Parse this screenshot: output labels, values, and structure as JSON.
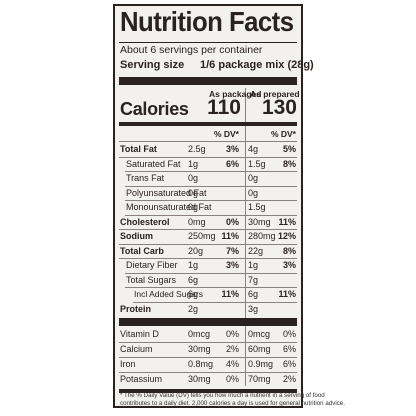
{
  "title": "Nutrition Facts",
  "servings_text": "About 6 servings per container",
  "serving_size_label": "Serving size",
  "serving_size_value": "1/6 package mix (28g)",
  "col_packaged": "As packaged",
  "col_prepared": "As prepared",
  "calories_label": "Calories",
  "calories_packaged": "110",
  "calories_prepared": "130",
  "dv_header": "% DV*",
  "nutrients": [
    {
      "label": "Total Fat",
      "bold": true,
      "indent": 0,
      "pkg_amt": "2.5g",
      "pkg_dv": "3%",
      "prep_amt": "4g",
      "prep_dv": "5%"
    },
    {
      "label": "Saturated Fat",
      "bold": false,
      "indent": 1,
      "pkg_amt": "1g",
      "pkg_dv": "6%",
      "prep_amt": "1.5g",
      "prep_dv": "8%"
    },
    {
      "label": "Trans Fat",
      "bold": false,
      "indent": 1,
      "pkg_amt": "0g",
      "pkg_dv": "",
      "prep_amt": "0g",
      "prep_dv": ""
    },
    {
      "label": "Polyunsaturated Fat",
      "bold": false,
      "indent": 1,
      "pkg_amt": "0g",
      "pkg_dv": "",
      "prep_amt": "0g",
      "prep_dv": ""
    },
    {
      "label": "Monounsaturated Fat",
      "bold": false,
      "indent": 1,
      "pkg_amt": "0g",
      "pkg_dv": "",
      "prep_amt": "1.5g",
      "prep_dv": ""
    },
    {
      "label": "Cholesterol",
      "bold": true,
      "indent": 0,
      "pkg_amt": "0mg",
      "pkg_dv": "0%",
      "prep_amt": "30mg",
      "prep_dv": "11%"
    },
    {
      "label": "Sodium",
      "bold": true,
      "indent": 0,
      "pkg_amt": "250mg",
      "pkg_dv": "11%",
      "prep_amt": "280mg",
      "prep_dv": "12%"
    },
    {
      "label": "Total Carb",
      "bold": true,
      "indent": 0,
      "pkg_amt": "20g",
      "pkg_dv": "7%",
      "prep_amt": "22g",
      "prep_dv": "8%"
    },
    {
      "label": "Dietary Fiber",
      "bold": false,
      "indent": 1,
      "pkg_amt": "1g",
      "pkg_dv": "3%",
      "prep_amt": "1g",
      "prep_dv": "3%"
    },
    {
      "label": "Total Sugars",
      "bold": false,
      "indent": 1,
      "pkg_amt": "6g",
      "pkg_dv": "",
      "prep_amt": "7g",
      "prep_dv": ""
    },
    {
      "label": "Incl Added Sugars",
      "bold": false,
      "indent": 2,
      "pkg_amt": "6g",
      "pkg_dv": "11%",
      "prep_amt": "6g",
      "prep_dv": "11%"
    },
    {
      "label": "Protein",
      "bold": true,
      "indent": 0,
      "pkg_amt": "2g",
      "pkg_dv": "",
      "prep_amt": "3g",
      "prep_dv": ""
    }
  ],
  "vitamins": [
    {
      "label": "Vitamin D",
      "pkg_amt": "0mcg",
      "pkg_dv": "0%",
      "prep_amt": "0mcg",
      "prep_dv": "0%"
    },
    {
      "label": "Calcium",
      "pkg_amt": "30mg",
      "pkg_dv": "2%",
      "prep_amt": "60mg",
      "prep_dv": "6%"
    },
    {
      "label": "Iron",
      "pkg_amt": "0.8mg",
      "pkg_dv": "4%",
      "prep_amt": "0.9mg",
      "prep_dv": "6%"
    },
    {
      "label": "Potassium",
      "pkg_amt": "30mg",
      "pkg_dv": "0%",
      "prep_amt": "70mg",
      "prep_dv": "2%"
    }
  ],
  "footnote_1": "* The % Daily Value (DV) tells you how much a nutrient in a serving of food",
  "footnote_2": "contributes to a daily diet. 2,000 calories a day is used for general nutrition advice."
}
